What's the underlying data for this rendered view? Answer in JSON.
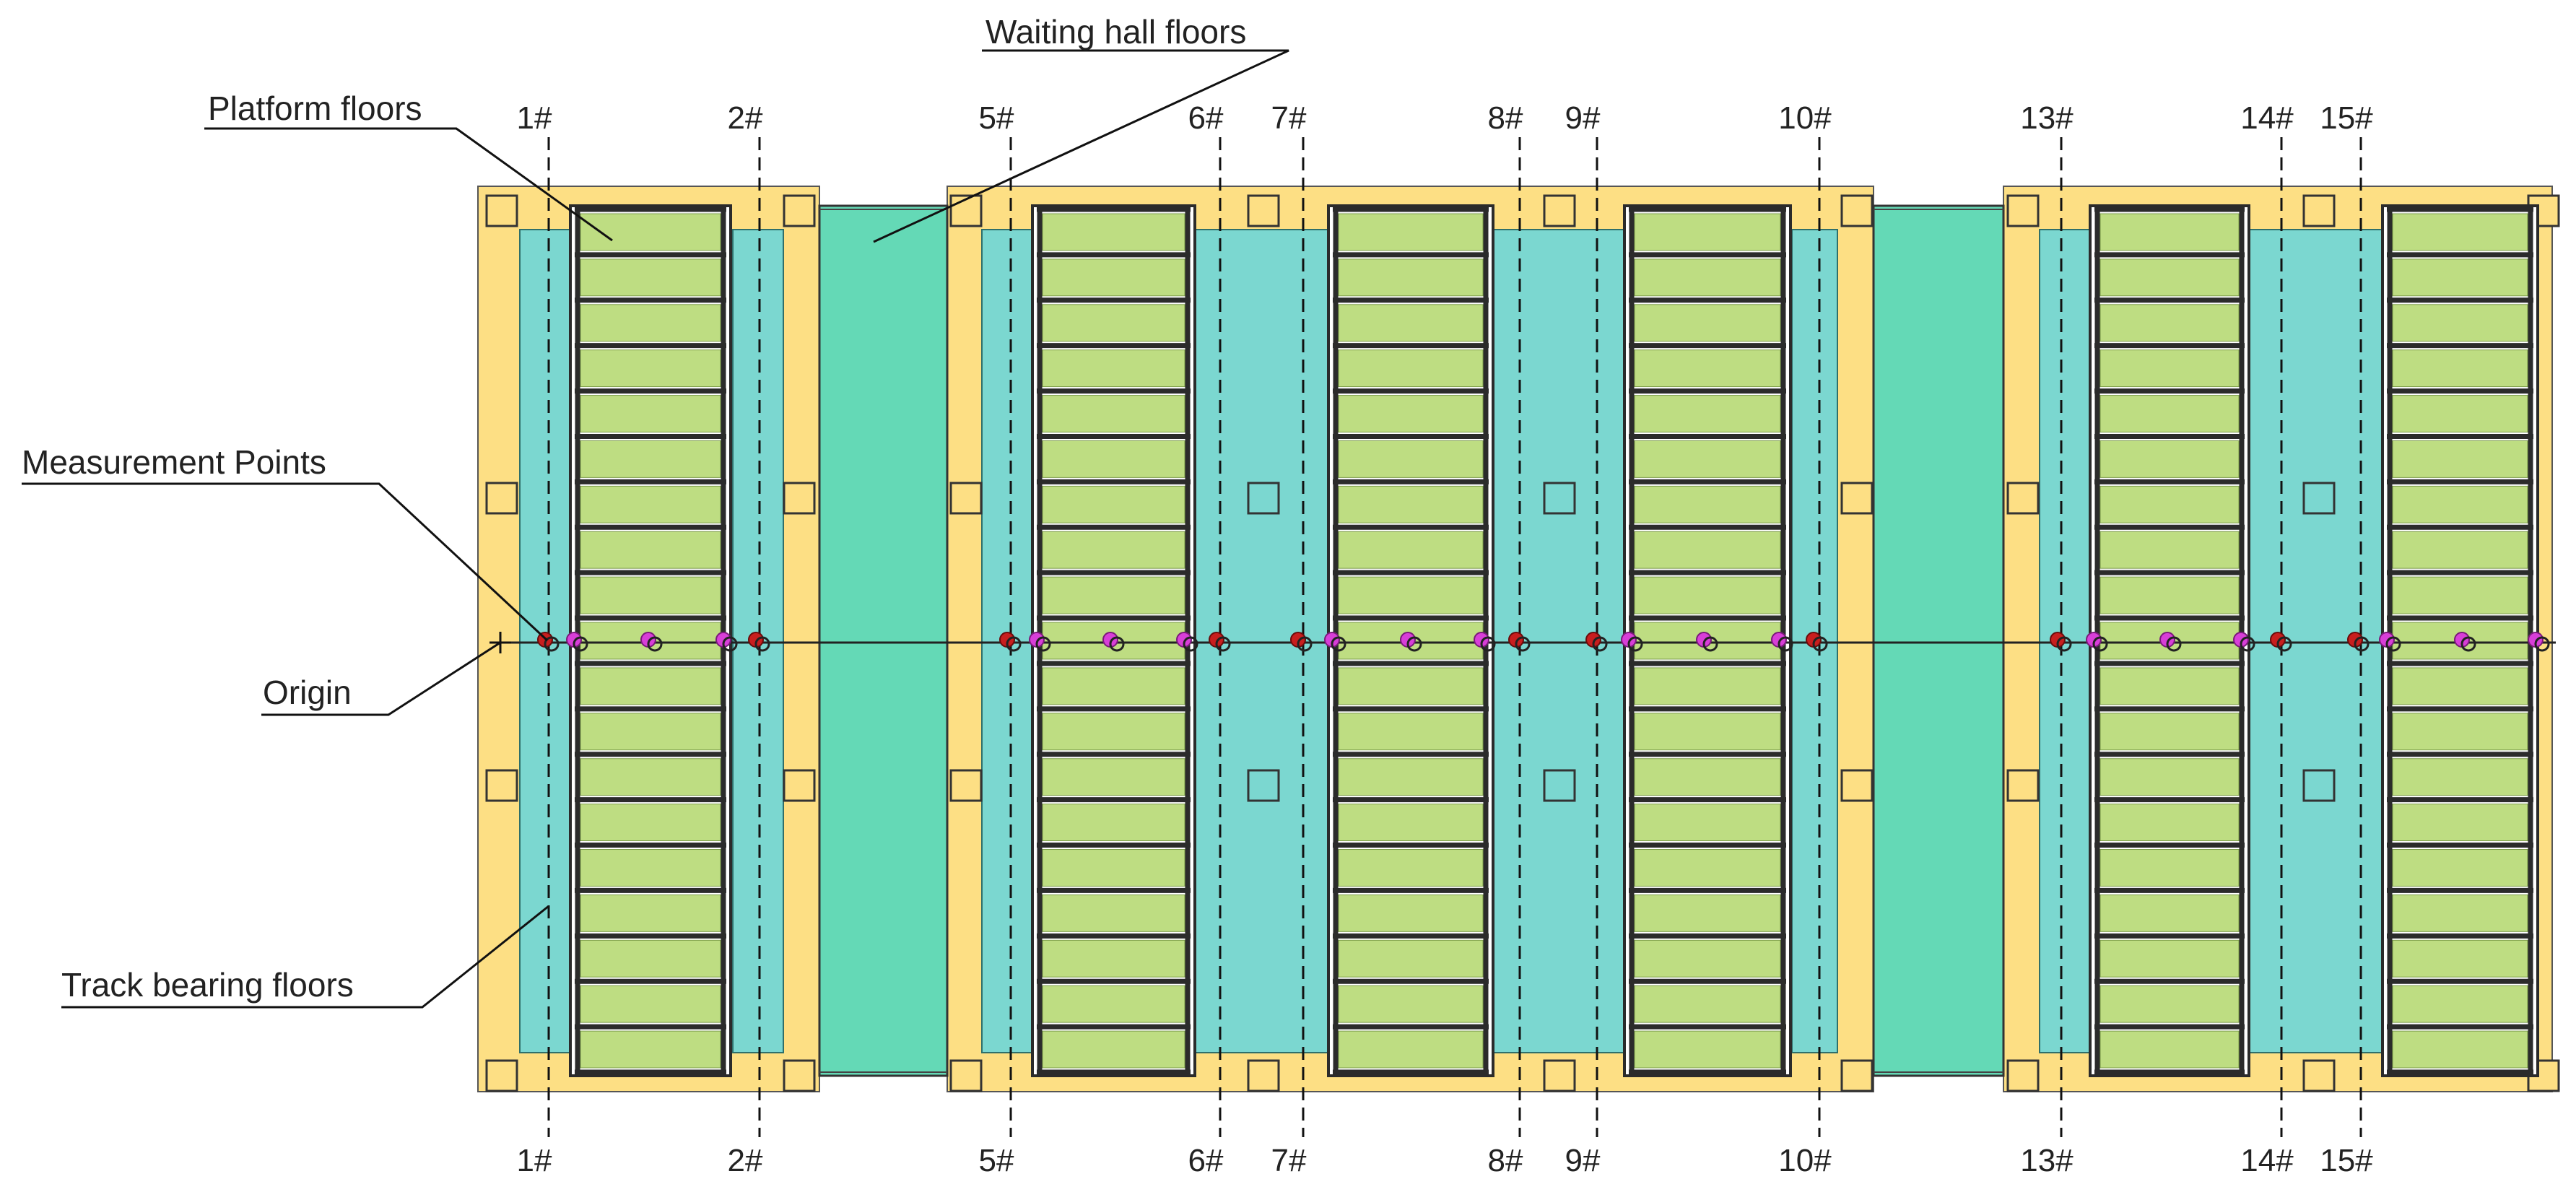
{
  "labels": {
    "platform_floors": "Platform floors",
    "waiting_hall_floors": "Waiting hall floors",
    "measurement_points": "Measurement Points",
    "origin": "Origin",
    "track_bearing_floors": "Track bearing floors"
  },
  "axes": [
    "1#",
    "2#",
    "5#",
    "6#",
    "7#",
    "8#",
    "9#",
    "10#",
    "13#",
    "14#",
    "15#"
  ],
  "colors": {
    "frame": "#FDDF84",
    "track_floor": "#7BD7D0",
    "waiting_floor": "#64D9B6",
    "platform_slab": "#BEDD82",
    "beam": "#2B2B2B",
    "marker_red": "#C81E1E",
    "marker_magenta": "#D83ED8"
  }
}
